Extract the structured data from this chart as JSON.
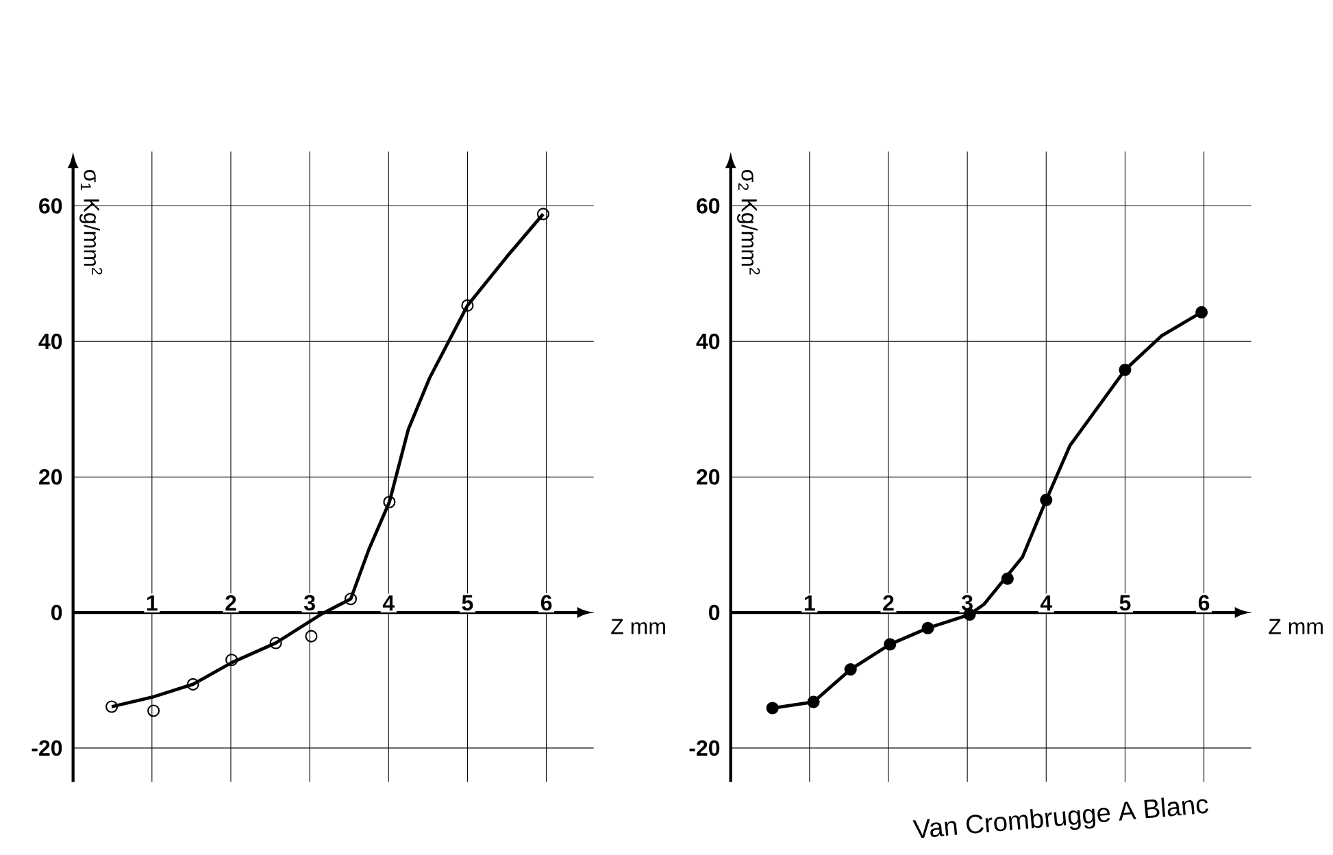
{
  "chart_data": [
    {
      "type": "line",
      "xlabel": "Z mm",
      "ylabel": "σ$_{1}$ Kg/mm$^{2}$",
      "xlim": [
        0,
        6.6
      ],
      "ylim": [
        -25,
        68
      ],
      "xticks": [
        1,
        2,
        3,
        4,
        5,
        6
      ],
      "yticks": [
        -20,
        0,
        20,
        40,
        60
      ],
      "grid": true,
      "series": [
        {
          "type": "scatter",
          "color": "#000000",
          "marker": "circle",
          "x": [
            0.49,
            1.02,
            1.52,
            2.01,
            2.57,
            3.02,
            3.52,
            4.01,
            5.0,
            5.96
          ],
          "values": [
            -13.9,
            -14.5,
            -10.6,
            -7.0,
            -4.5,
            -3.5,
            2.0,
            16.3,
            45.3,
            58.8
          ]
        },
        {
          "color": "#000000",
          "marker": "none",
          "x": [
            0.49,
            1.0,
            1.52,
            2.01,
            2.57,
            3.14,
            3.52,
            3.75,
            4.01,
            4.25,
            4.52,
            5.0,
            5.5,
            5.96
          ],
          "values": [
            -13.9,
            -12.5,
            -10.6,
            -7.4,
            -4.5,
            -0.3,
            2.0,
            9.3,
            16.3,
            27.0,
            34.6,
            45.3,
            52.5,
            58.8
          ]
        }
      ]
    },
    {
      "type": "line",
      "xlabel": "Z mm",
      "ylabel": "σ$_{2}$ Kg/mm$^{2}$",
      "xlim": [
        0,
        6.6
      ],
      "ylim": [
        -25,
        68
      ],
      "xticks": [
        1,
        2,
        3,
        4,
        5,
        6
      ],
      "yticks": [
        -20,
        0,
        20,
        40,
        60
      ],
      "grid": true,
      "annotations": [
        "Van Crombrugge A Blanc"
      ],
      "series": [
        {
          "type": "scatter",
          "color": "#000000",
          "marker": "circle",
          "x": [
            0.53,
            1.05,
            1.52,
            2.02,
            2.5,
            3.03,
            3.51,
            4.0,
            5.0,
            5.97
          ],
          "values": [
            -14.1,
            -13.2,
            -8.4,
            -4.7,
            -2.3,
            -0.3,
            5.0,
            16.6,
            35.8,
            44.3
          ]
        },
        {
          "color": "#000000",
          "marker": "none",
          "x": [
            0.53,
            1.05,
            1.52,
            2.02,
            2.5,
            3.03,
            3.21,
            3.7,
            4.0,
            4.3,
            5.0,
            5.46,
            5.97
          ],
          "values": [
            -14.1,
            -13.2,
            -8.4,
            -4.7,
            -2.3,
            -0.3,
            1.2,
            8.2,
            16.6,
            24.6,
            35.8,
            40.8,
            44.3
          ]
        }
      ]
    }
  ]
}
